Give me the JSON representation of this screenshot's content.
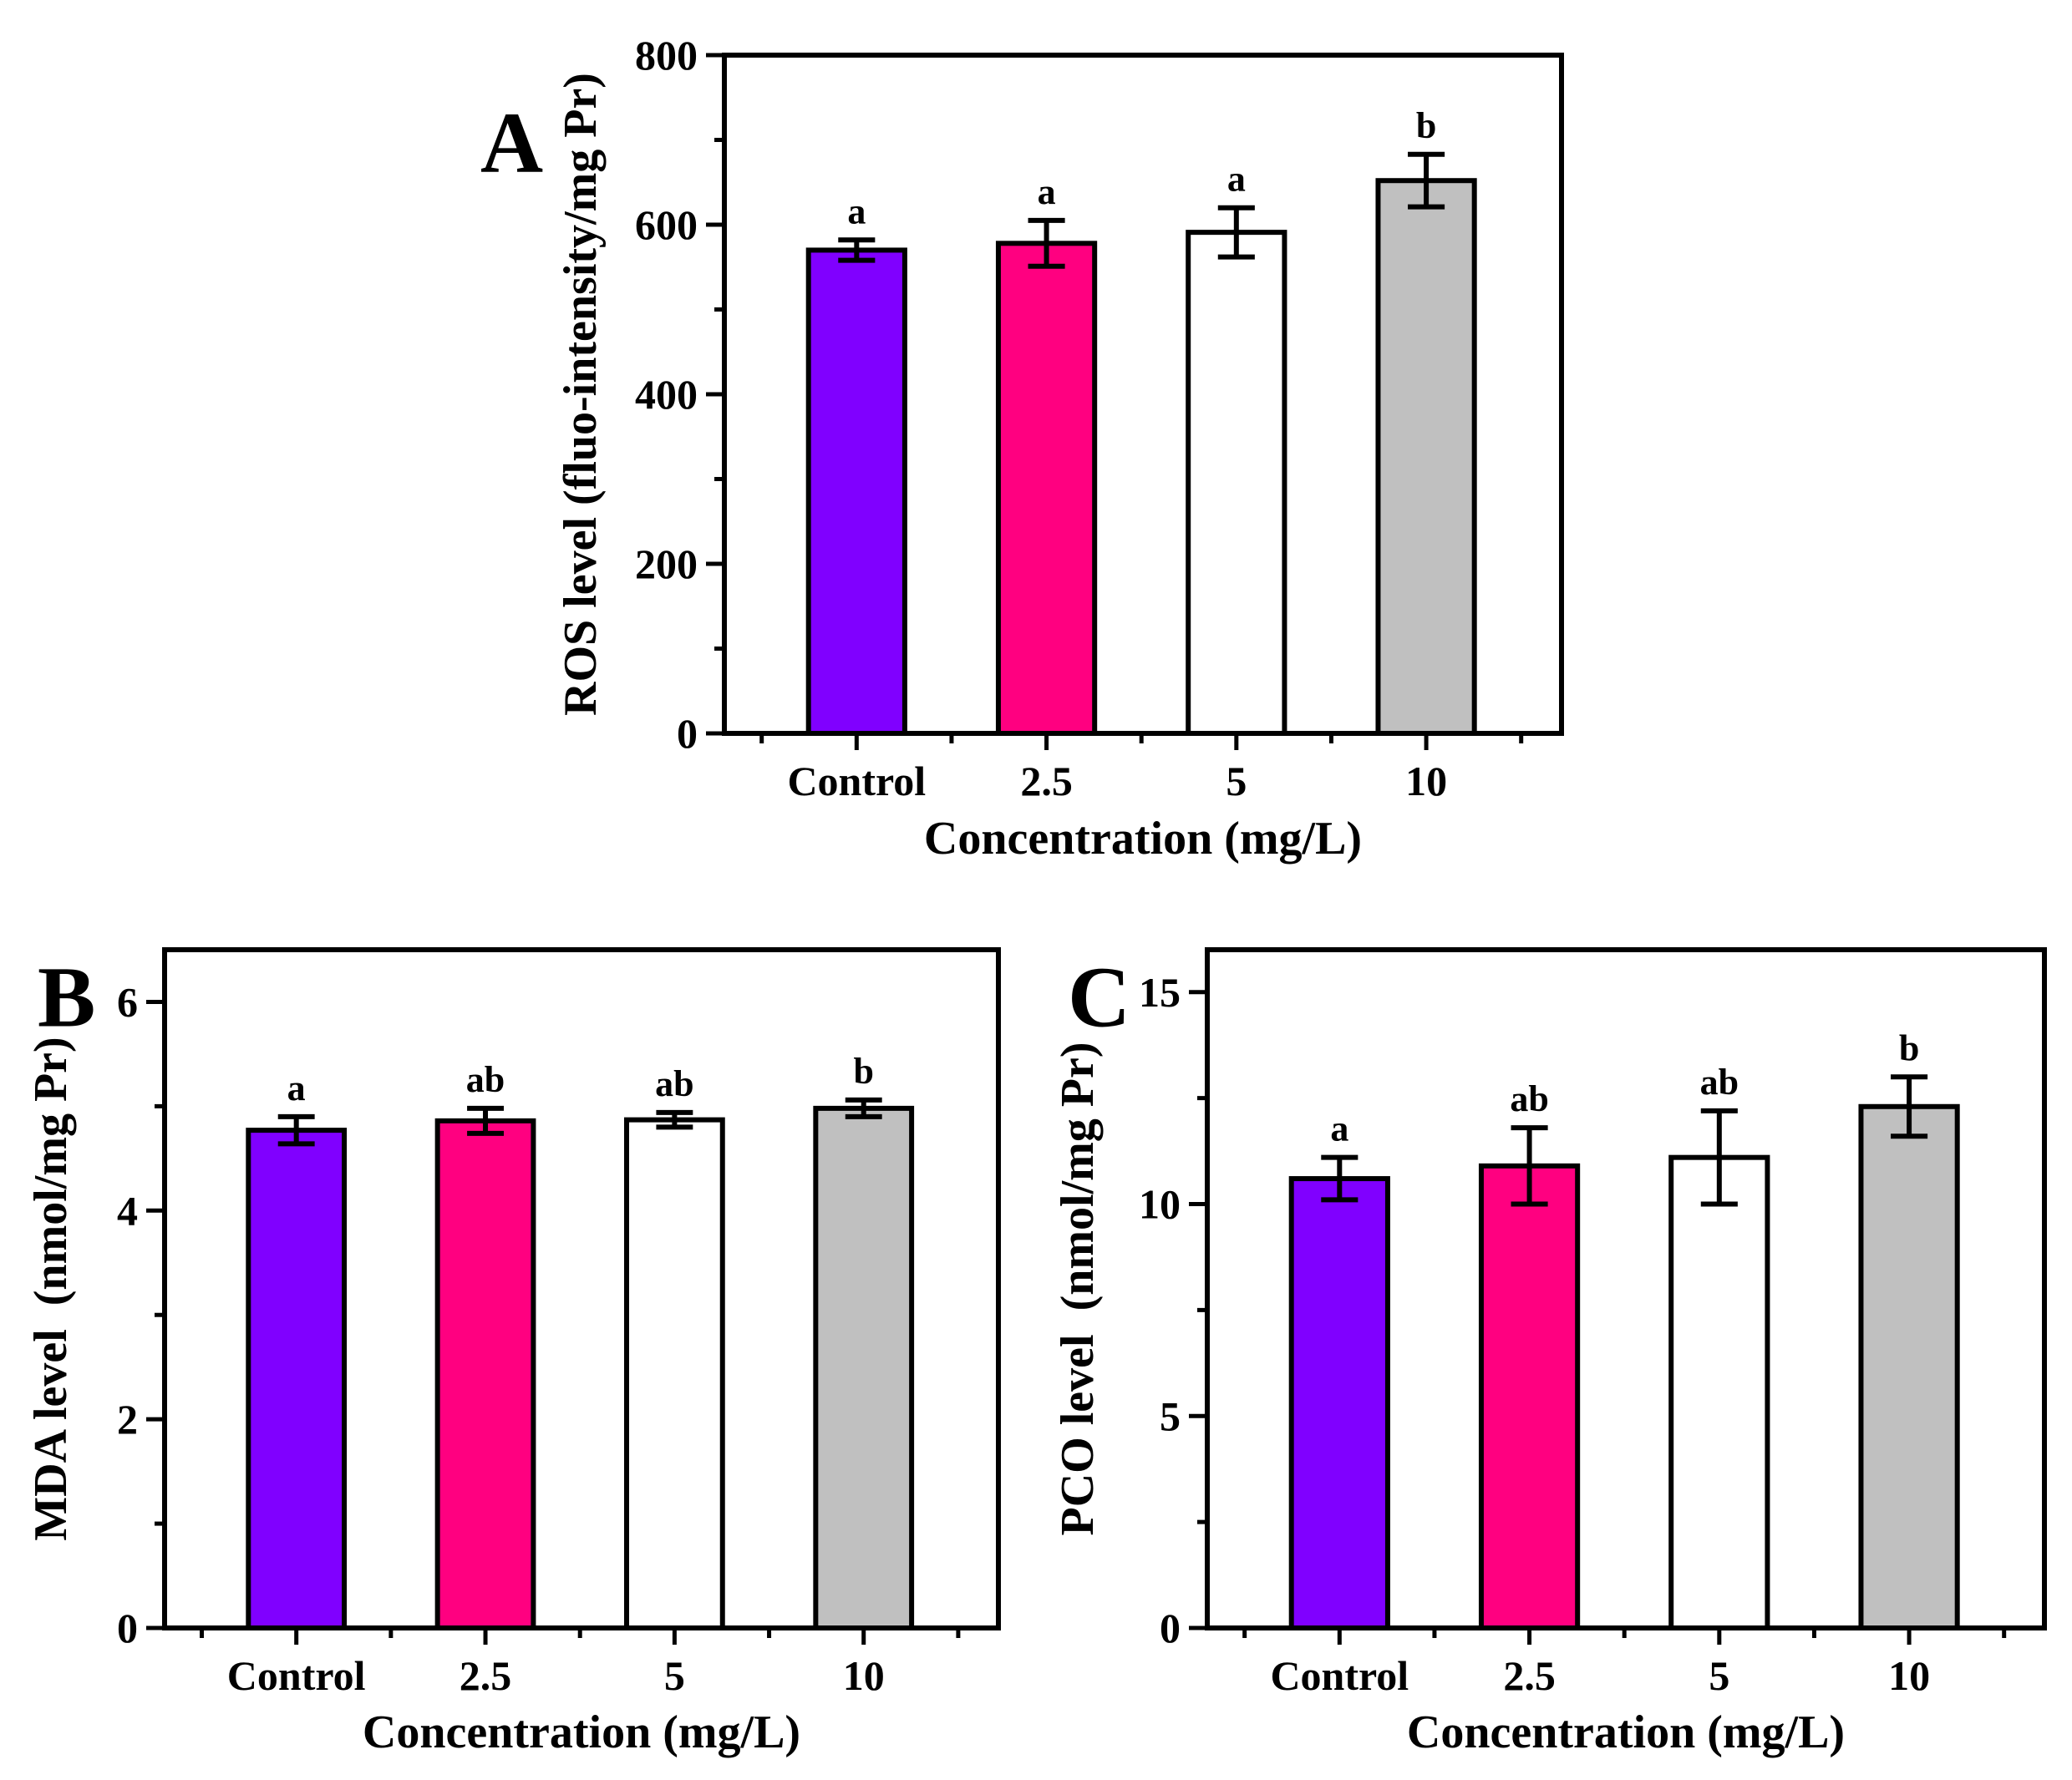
{
  "chart_data": [
    {
      "panel": "A",
      "type": "bar",
      "categories": [
        "Control",
        "2.5",
        "5",
        "10"
      ],
      "values": [
        570,
        578,
        591,
        652
      ],
      "errors": [
        12,
        27,
        29,
        31
      ],
      "significance": [
        "a",
        "a",
        "a",
        "b"
      ],
      "colors": [
        "#8000ff",
        "#ff0080",
        "#ffffff",
        "#c0c0c0"
      ],
      "xlabel": "Concentration (mg/L)",
      "ylabel": "ROS level (fluo-intensity/mg Pr)",
      "ylim": [
        0,
        800
      ],
      "yticks": [
        "0",
        "200",
        "400",
        "600",
        "800"
      ],
      "ytick_values": [
        0,
        200,
        400,
        600,
        800
      ]
    },
    {
      "panel": "B",
      "type": "bar",
      "categories": [
        "Control",
        "2.5",
        "5",
        "10"
      ],
      "values": [
        4.77,
        4.86,
        4.87,
        4.98
      ],
      "errors": [
        0.13,
        0.12,
        0.07,
        0.08
      ],
      "significance": [
        "a",
        "ab",
        "ab",
        "b"
      ],
      "colors": [
        "#8000ff",
        "#ff0080",
        "#ffffff",
        "#c0c0c0"
      ],
      "xlabel": "Concentration (mg/L)",
      "ylabel": "MDA level  (nmol/mg Pr)",
      "ylim": [
        0,
        6.5
      ],
      "yticks": [
        "0",
        "2",
        "4",
        "6"
      ],
      "ytick_values": [
        0,
        2,
        4,
        6
      ]
    },
    {
      "panel": "C",
      "type": "bar",
      "categories": [
        "Control",
        "2.5",
        "5",
        "10"
      ],
      "values": [
        10.6,
        10.9,
        11.1,
        12.3
      ],
      "errors": [
        0.5,
        0.9,
        1.1,
        0.7
      ],
      "significance": [
        "a",
        "ab",
        "ab",
        "b"
      ],
      "colors": [
        "#8000ff",
        "#ff0080",
        "#ffffff",
        "#c0c0c0"
      ],
      "xlabel": "Concentration (mg/L)",
      "ylabel": "PCO level  (nmol/mg Pr)",
      "ylim": [
        0,
        16
      ],
      "yticks": [
        "0",
        "5",
        "10",
        "15"
      ],
      "ytick_values": [
        0,
        5,
        10,
        15
      ]
    }
  ]
}
